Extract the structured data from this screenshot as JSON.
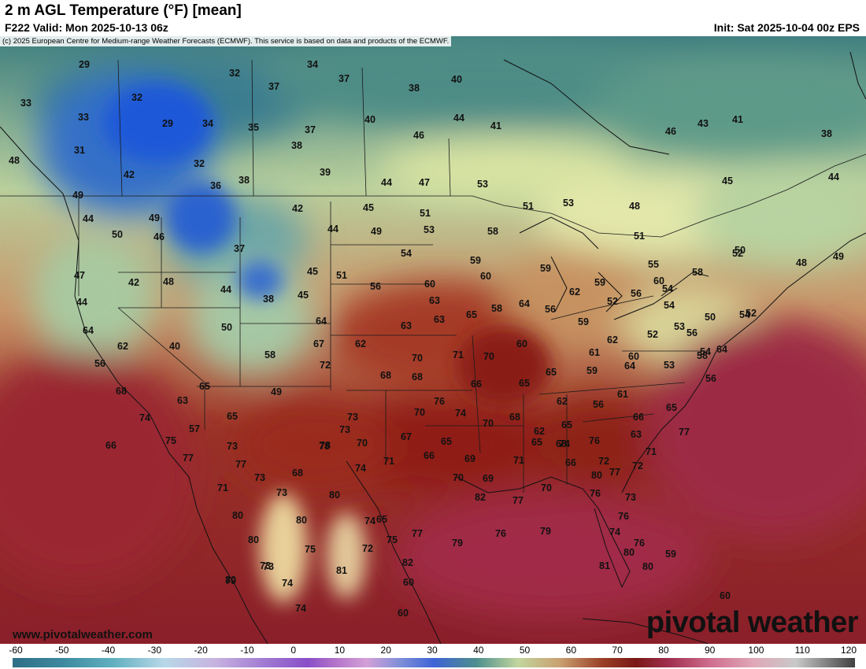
{
  "header": {
    "title": "2 m AGL Temperature (°F) [mean]",
    "valid": "F222 Valid: Mon 2025-10-13 06z",
    "init": "Init: Sat 2025-10-04 00z EPS"
  },
  "copyright": "(c) 2025 European Centre for Medium-range Weather Forecasts (ECMWF). This service is based on data and products of the ECMWF.",
  "footer": {
    "website": "www.pivotalweather.com",
    "logo": "pivotal weather"
  },
  "colors": {
    "very_cold": "#1e5bd6",
    "cold": "#5b8fc7",
    "cool": "#5f9c8f",
    "mild": "#d9e3a6",
    "warm": "#c9956a",
    "hot": "#8a1e1a",
    "very_hot": "#9a2540"
  },
  "colorbar": {
    "ticks": [
      "-60",
      "-50",
      "-40",
      "-30",
      "-20",
      "-10",
      "0",
      "10",
      "20",
      "30",
      "40",
      "50",
      "60",
      "70",
      "80",
      "90",
      "100",
      "110",
      "120"
    ]
  },
  "temps": [
    "29",
    "34",
    "32",
    "37",
    "37",
    "38",
    "33",
    "32",
    "33",
    "29",
    "34",
    "35",
    "37",
    "40",
    "44",
    "46",
    "41",
    "40",
    "31",
    "48",
    "38",
    "42",
    "32",
    "36",
    "38",
    "39",
    "44",
    "47",
    "49",
    "53",
    "46",
    "43",
    "41",
    "38",
    "45",
    "44",
    "51",
    "45",
    "42",
    "49",
    "44",
    "53",
    "58",
    "53",
    "51",
    "49",
    "50",
    "46",
    "37",
    "44",
    "54",
    "55",
    "50",
    "59",
    "59",
    "48",
    "51",
    "52",
    "48",
    "49",
    "47",
    "42",
    "48",
    "44",
    "45",
    "51",
    "56",
    "60",
    "60",
    "62",
    "59",
    "58",
    "60",
    "54",
    "56",
    "44",
    "38",
    "45",
    "63",
    "64",
    "63",
    "65",
    "58",
    "56",
    "52",
    "54",
    "50",
    "40",
    "50",
    "64",
    "65",
    "58",
    "63",
    "67",
    "60",
    "59",
    "62",
    "52",
    "53",
    "54",
    "56",
    "52",
    "53",
    "62",
    "68",
    "70",
    "71",
    "70",
    "65",
    "61",
    "59",
    "64",
    "60",
    "58",
    "56",
    "64",
    "62",
    "68",
    "72",
    "68",
    "66",
    "65",
    "62",
    "56",
    "61",
    "65",
    "66",
    "54",
    "64",
    "56",
    "63",
    "65",
    "49",
    "57",
    "73",
    "70",
    "76",
    "74",
    "70",
    "68",
    "62",
    "65",
    "63",
    "77",
    "71",
    "66",
    "73",
    "78",
    "73",
    "70",
    "67",
    "65",
    "65",
    "74",
    "76",
    "74",
    "75",
    "77",
    "77",
    "74",
    "71",
    "66",
    "69",
    "68",
    "78",
    "73",
    "73",
    "72",
    "72",
    "68",
    "70",
    "69",
    "71",
    "80",
    "66",
    "70",
    "76",
    "73",
    "80",
    "71",
    "80",
    "77",
    "72",
    "82",
    "80",
    "80",
    "77",
    "76",
    "65",
    "79",
    "76",
    "79",
    "73",
    "80",
    "74",
    "75",
    "75",
    "74",
    "80",
    "81",
    "76",
    "77",
    "80",
    "82",
    "60",
    "60",
    "59",
    "60",
    "81",
    "79",
    "74",
    "73",
    "74"
  ],
  "chart_data": {
    "type": "heatmap",
    "title": "2 m AGL Temperature (°F) [mean]",
    "colorbar_ticks": [
      -60,
      -50,
      -40,
      -30,
      -20,
      -10,
      0,
      10,
      20,
      30,
      40,
      50,
      60,
      70,
      80,
      90,
      100,
      110,
      120
    ],
    "colorbar_range": [
      -60,
      120
    ],
    "units": "°F"
  }
}
